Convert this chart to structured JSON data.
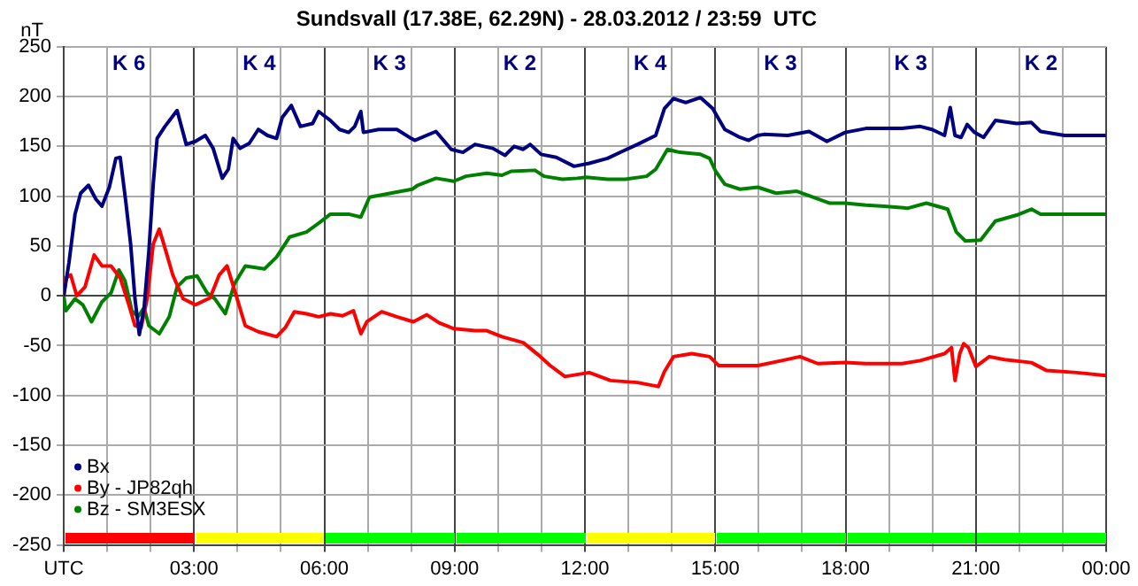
{
  "chart_data": {
    "type": "line",
    "title": "Sundsvall (17.38E, 62.29N) - 28.03.2012 / 23:59  UTC",
    "ylabel": "nT",
    "xlim": [
      0,
      24
    ],
    "ylim": [
      -250,
      250
    ],
    "xticks": [
      {
        "value": 0,
        "label": "UTC"
      },
      {
        "value": 1,
        "label": null
      },
      {
        "value": 2,
        "label": null
      },
      {
        "value": 3,
        "label": "03:00"
      },
      {
        "value": 4,
        "label": null
      },
      {
        "value": 5,
        "label": null
      },
      {
        "value": 6,
        "label": "06:00"
      },
      {
        "value": 7,
        "label": null
      },
      {
        "value": 8,
        "label": null
      },
      {
        "value": 9,
        "label": "09:00"
      },
      {
        "value": 10,
        "label": null
      },
      {
        "value": 11,
        "label": null
      },
      {
        "value": 12,
        "label": "12:00"
      },
      {
        "value": 13,
        "label": null
      },
      {
        "value": 14,
        "label": null
      },
      {
        "value": 15,
        "label": "15:00"
      },
      {
        "value": 16,
        "label": null
      },
      {
        "value": 17,
        "label": null
      },
      {
        "value": 18,
        "label": "18:00"
      },
      {
        "value": 19,
        "label": null
      },
      {
        "value": 20,
        "label": null
      },
      {
        "value": 21,
        "label": "21:00"
      },
      {
        "value": 22,
        "label": null
      },
      {
        "value": 23,
        "label": null
      },
      {
        "value": 24,
        "label": "00:00"
      }
    ],
    "yticks": [
      -250,
      -200,
      -150,
      -100,
      -50,
      0,
      50,
      100,
      150,
      200,
      250
    ],
    "grid": true,
    "legend": "bottom left",
    "marker": "none",
    "line_style": "solid",
    "series": [
      {
        "name": "Bx",
        "color": "#000080",
        "x": [
          0,
          0.12,
          0.26,
          0.39,
          0.57,
          0.74,
          0.88,
          1.05,
          1.2,
          1.3,
          1.43,
          1.54,
          1.64,
          1.74,
          1.85,
          1.96,
          2.06,
          2.15,
          2.33,
          2.61,
          2.82,
          3.03,
          3.26,
          3.44,
          3.65,
          3.79,
          3.9,
          4.06,
          4.27,
          4.48,
          4.69,
          4.9,
          5.03,
          5.24,
          5.45,
          5.73,
          5.87,
          6.14,
          6.35,
          6.56,
          6.7,
          6.84,
          6.9,
          7.25,
          7.67,
          8.0,
          8.08,
          8.57,
          8.92,
          9.19,
          9.47,
          9.88,
          10.16,
          10.37,
          10.58,
          10.74,
          10.99,
          11.34,
          11.75,
          12.1,
          12.52,
          12.86,
          13.21,
          13.63,
          13.83,
          14.04,
          14.32,
          14.66,
          14.94,
          15.22,
          15.57,
          15.77,
          15.98,
          16.12,
          16.67,
          17.16,
          17.57,
          17.99,
          18.47,
          19.3,
          19.72,
          19.99,
          20.28,
          20.41,
          20.52,
          20.66,
          20.8,
          20.97,
          21.18,
          21.45,
          21.94,
          22.28,
          22.49,
          23.04,
          23.99
        ],
        "values": [
          0,
          33,
          82,
          103,
          111,
          97,
          90,
          109,
          138,
          139,
          94,
          52,
          -3,
          -39,
          -12,
          45,
          112,
          158,
          170,
          186,
          152,
          155,
          161,
          148,
          118,
          127,
          158,
          148,
          153,
          167,
          161,
          158,
          179,
          191,
          170,
          173,
          185,
          176,
          167,
          164,
          170,
          185,
          164,
          167,
          167,
          158,
          156,
          165,
          147,
          144,
          152,
          148,
          141,
          150,
          147,
          152,
          142,
          139,
          130,
          133,
          138,
          145,
          152,
          161,
          188,
          198,
          194,
          199,
          188,
          167,
          159,
          156,
          161,
          162,
          161,
          165,
          155,
          164,
          168,
          168,
          170,
          167,
          161,
          189,
          161,
          159,
          172,
          164,
          159,
          176,
          173,
          174,
          165,
          161,
          161
        ]
      },
      {
        "name": "By - JP82qh",
        "color": "#ff0000",
        "x": [
          0,
          0.05,
          0.16,
          0.3,
          0.49,
          0.7,
          0.88,
          1.09,
          1.3,
          1.5,
          1.64,
          1.78,
          1.92,
          2.06,
          2.2,
          2.33,
          2.51,
          2.75,
          3.03,
          3.37,
          3.58,
          3.76,
          3.93,
          4.18,
          4.48,
          4.9,
          5.1,
          5.31,
          5.59,
          5.87,
          6.14,
          6.42,
          6.67,
          6.84,
          6.98,
          7.32,
          7.67,
          8.05,
          8.36,
          8.64,
          8.98,
          9.47,
          9.74,
          10.09,
          10.58,
          10.92,
          11.2,
          11.54,
          12.1,
          12.59,
          13.21,
          13.69,
          13.83,
          14.04,
          14.46,
          14.87,
          15.08,
          15.98,
          16.53,
          16.95,
          17.36,
          17.99,
          18.47,
          19.3,
          19.72,
          20.28,
          20.44,
          20.52,
          20.63,
          20.72,
          20.83,
          21.0,
          21.31,
          21.66,
          22.28,
          22.63,
          23.32,
          23.99
        ],
        "values": [
          0,
          18,
          21,
          0,
          9,
          41,
          30,
          30,
          18,
          -9,
          -30,
          -32,
          -3,
          52,
          67,
          48,
          21,
          -3,
          -9,
          -2,
          21,
          30,
          6,
          -30,
          -36,
          -41,
          -32,
          -16,
          -18,
          -21,
          -18,
          -20,
          -15,
          -38,
          -26,
          -16,
          -21,
          -26,
          -19,
          -27,
          -33,
          -35,
          -35,
          -41,
          -47,
          -59,
          -70,
          -81,
          -77,
          -85,
          -87,
          -91,
          -76,
          -61,
          -58,
          -61,
          -70,
          -70,
          -65,
          -61,
          -68,
          -67,
          -68,
          -68,
          -65,
          -58,
          -52,
          -85,
          -58,
          -48,
          -52,
          -71,
          -61,
          -64,
          -67,
          -75,
          -77,
          -80
        ]
      },
      {
        "name": "Bz - SM3ESX",
        "color": "#008000",
        "x": [
          0,
          0.05,
          0.26,
          0.44,
          0.64,
          0.88,
          1.09,
          1.27,
          1.41,
          1.57,
          1.71,
          1.85,
          1.96,
          2.2,
          2.43,
          2.61,
          2.82,
          3.07,
          3.3,
          3.48,
          3.72,
          3.93,
          4.18,
          4.62,
          4.9,
          5.2,
          5.59,
          5.87,
          6.14,
          6.56,
          6.84,
          7.04,
          7.53,
          8.02,
          8.15,
          8.57,
          8.98,
          9.26,
          9.74,
          10.09,
          10.3,
          10.85,
          11.06,
          11.48,
          11.82,
          12.03,
          12.52,
          12.93,
          13.42,
          13.63,
          13.9,
          14.18,
          14.66,
          14.87,
          15.01,
          15.22,
          15.57,
          15.98,
          16.4,
          16.88,
          17.64,
          17.99,
          18.47,
          18.89,
          19.44,
          19.86,
          20.35,
          20.55,
          20.76,
          21.11,
          21.45,
          21.94,
          22.28,
          22.49,
          23.99
        ],
        "values": [
          0,
          -15,
          -3,
          -9,
          -26,
          -6,
          3,
          26,
          15,
          -15,
          -21,
          -12,
          -30,
          -38,
          -21,
          9,
          18,
          20,
          3,
          -3,
          -18,
          12,
          30,
          27,
          39,
          59,
          64,
          73,
          82,
          82,
          79,
          99,
          103,
          107,
          111,
          118,
          115,
          120,
          123,
          121,
          125,
          126,
          120,
          117,
          118,
          119,
          117,
          117,
          120,
          127,
          147,
          144,
          142,
          138,
          125,
          112,
          107,
          109,
          103,
          105,
          93,
          93,
          91,
          90,
          88,
          93,
          87,
          64,
          55,
          56,
          75,
          81,
          87,
          82,
          82
        ]
      }
    ],
    "annotations": [
      "K 6",
      "K 4",
      "K 3",
      "K 2",
      "K 4",
      "K 3",
      "K 3",
      "K 2"
    ]
  }
}
